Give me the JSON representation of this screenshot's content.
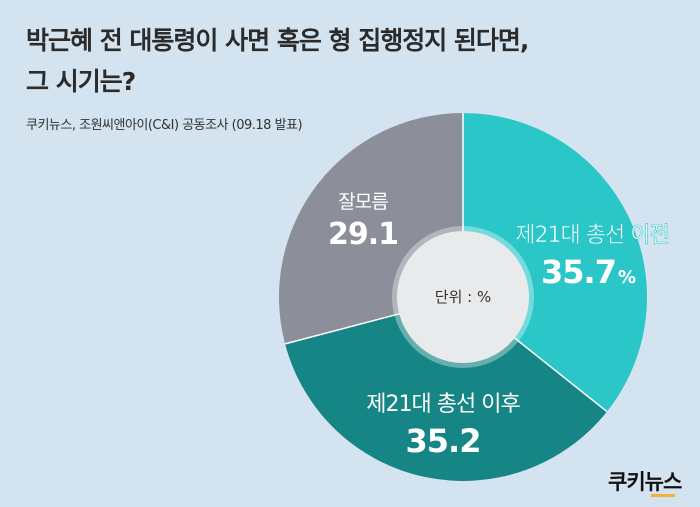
{
  "title_lines": [
    "박근혜 전 대통령이 사면 혹은 형 집행정지 된다면,",
    "그 시기는?"
  ],
  "source": "쿠키뉴스, 조원씨앤아이(C&I) 공동조사 (09.18 발표)",
  "brand": "쿠키뉴스",
  "chart_data": {
    "type": "pie",
    "title": "박근혜 전 대통령이 사면 혹은 형 집행정지 된다면, 그 시기는?",
    "unit_label": "단위 : %",
    "slices": [
      {
        "label": "제21대 총선 이전",
        "value": 35.7,
        "value_text": "35.7",
        "suffix": "%",
        "color": "#2ac6c8"
      },
      {
        "label": "제21대 총선 이후",
        "value": 35.2,
        "value_text": "35.2",
        "suffix": "",
        "color": "#158585"
      },
      {
        "label": "잘모름",
        "value": 29.1,
        "value_text": "29.1",
        "suffix": "",
        "color": "#8c8e99"
      }
    ]
  }
}
